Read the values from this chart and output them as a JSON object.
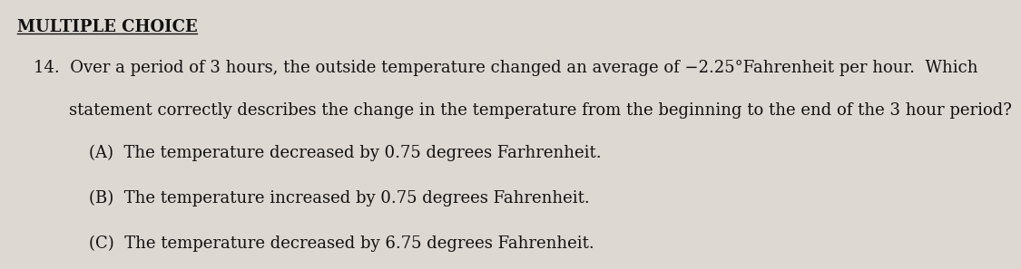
{
  "background_color": "#ddd8d2",
  "header": "MULTIPLE CHOICE",
  "question_number": "14.",
  "question_line1": "Over a period of 3 hours, the outside temperature changed an average of −2.25°Fahrenheit per hour.  Which",
  "question_line2": "statement correctly describes the change in the temperature from the beginning to the end of the 3 hour period?",
  "option_A": "(A)  The temperature decreased by 0.75 degrees Farhrenheit.",
  "option_B": "(B)  The temperature increased by 0.75 degrees Fahrenheit.",
  "option_C": "(C)  The temperature decreased by 6.75 degrees Fahrenheit.",
  "header_fontsize": 13,
  "question_fontsize": 13,
  "option_fontsize": 13,
  "text_color": "#111111",
  "font_family": "DejaVu Serif"
}
